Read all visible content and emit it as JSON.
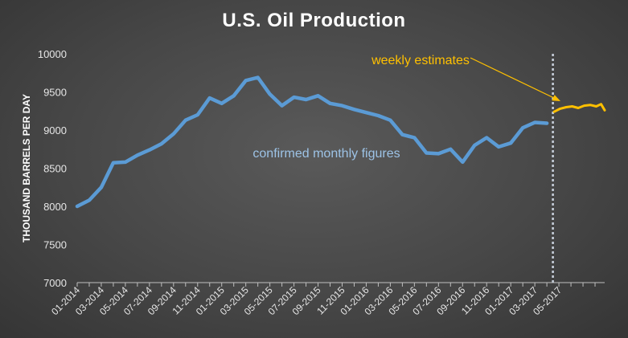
{
  "chart_data": {
    "type": "line",
    "title": "U.S. Oil Production",
    "xlabel": "",
    "ylabel": "THOUSAND BARRELS PER DAY",
    "ylim": [
      7000,
      10000
    ],
    "yticks": [
      7000,
      7500,
      8000,
      8500,
      9000,
      9500,
      10000
    ],
    "xticks": [
      "01-2014",
      "03-2014",
      "05-2014",
      "07-2014",
      "09-2014",
      "11-2014",
      "01-2015",
      "03-2015",
      "05-2015",
      "07-2015",
      "09-2015",
      "11-2015",
      "01-2016",
      "03-2016",
      "05-2016",
      "07-2016",
      "09-2016",
      "11-2016",
      "01-2017",
      "03-2017",
      "05-2017"
    ],
    "grid": false,
    "legend": "none",
    "colors": {
      "monthly": "#5b9bd5",
      "weekly": "#ffc000",
      "divider": "#c8d0dc",
      "arrow": "#ffc000"
    },
    "series": [
      {
        "label": "confirmed monthly figures",
        "x": [
          "01-2014",
          "02-2014",
          "03-2014",
          "04-2014",
          "05-2014",
          "06-2014",
          "07-2014",
          "08-2014",
          "09-2014",
          "10-2014",
          "11-2014",
          "12-2014",
          "01-2015",
          "02-2015",
          "03-2015",
          "04-2015",
          "05-2015",
          "06-2015",
          "07-2015",
          "08-2015",
          "09-2015",
          "10-2015",
          "11-2015",
          "12-2015",
          "01-2016",
          "02-2016",
          "03-2016",
          "04-2016",
          "05-2016",
          "06-2016",
          "07-2016",
          "08-2016",
          "09-2016",
          "10-2016",
          "11-2016",
          "12-2016",
          "01-2017",
          "02-2017",
          "03-2017",
          "04-2017"
        ],
        "values": [
          8000,
          8080,
          8250,
          8570,
          8580,
          8670,
          8740,
          8820,
          8950,
          9130,
          9200,
          9420,
          9350,
          9450,
          9650,
          9690,
          9470,
          9320,
          9430,
          9400,
          9450,
          9350,
          9320,
          9270,
          9230,
          9190,
          9130,
          8940,
          8900,
          8700,
          8690,
          8750,
          8580,
          8800,
          8900,
          8780,
          8830,
          9030,
          9100,
          9090
        ]
      },
      {
        "label": "weekly estimates",
        "x": [
          39.6,
          40.1,
          40.6,
          41.1,
          41.6,
          42.1,
          42.6,
          43.1,
          43.5,
          43.8
        ],
        "values": [
          9240,
          9280,
          9300,
          9310,
          9290,
          9320,
          9330,
          9310,
          9340,
          9260
        ]
      }
    ],
    "divider_at": 39.5,
    "annotations": [
      {
        "text": "confirmed monthly figures",
        "target_series": 0
      },
      {
        "text": "weekly estimates",
        "target_series": 1
      }
    ]
  }
}
